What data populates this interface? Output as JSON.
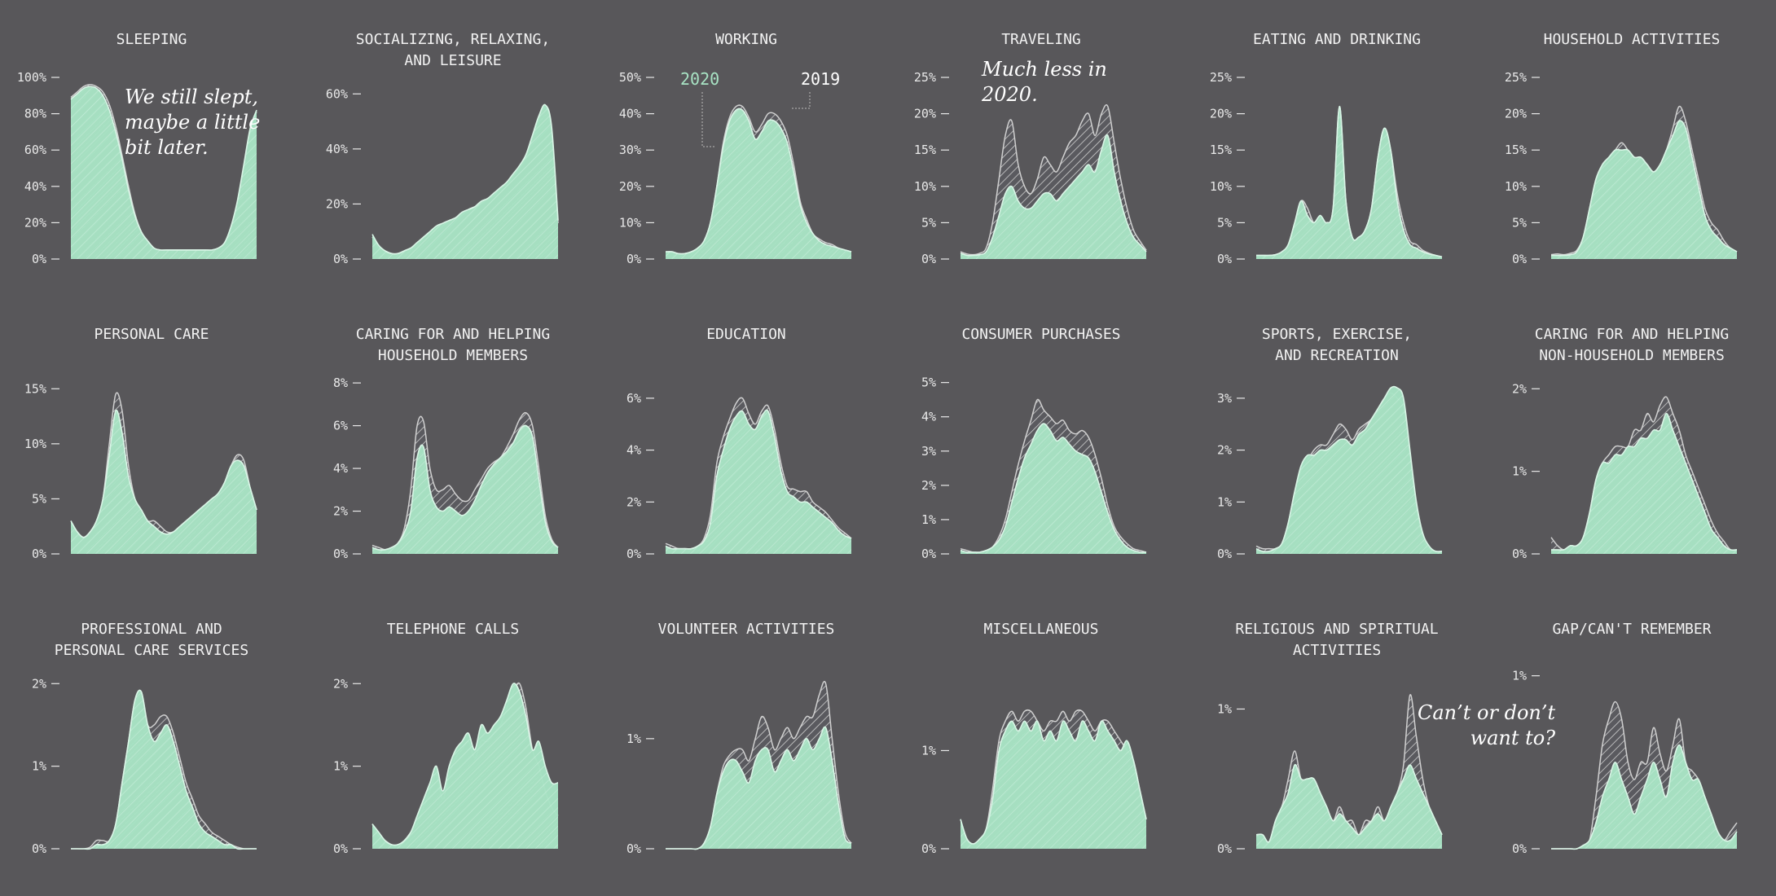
{
  "colors": {
    "background": "#58575a",
    "fill_2020": "#a8e3c4",
    "line_2020": "#d9f5e6",
    "fill_2019": "#5a5a5f",
    "line_2019": "#d0d0d0"
  },
  "legend": {
    "label_2020": "2020",
    "label_2019": "2019"
  },
  "annotations": {
    "sleeping": "We still slept,\nmaybe a little\nbit later.",
    "traveling": "Much less in\n2020.",
    "gap": "Can’t or don’t\nwant to?"
  },
  "chart_data": [
    {
      "type": "area",
      "title": "SLEEPING",
      "ymax": 100,
      "ticks": [
        "0%",
        "20%",
        "40%",
        "60%",
        "80%",
        "100%"
      ],
      "tick_values": [
        0,
        20,
        40,
        60,
        80,
        100
      ],
      "y2020": [
        88,
        91,
        94,
        95,
        94,
        90,
        82,
        70,
        55,
        38,
        24,
        15,
        10,
        6,
        5,
        5,
        5,
        5,
        5,
        5,
        5,
        5,
        5,
        6,
        9,
        18,
        32,
        52,
        72,
        82
      ],
      "y2019": [
        89,
        92,
        95,
        96,
        95,
        92,
        85,
        73,
        57,
        40,
        25,
        15,
        10,
        6,
        5,
        5,
        5,
        5,
        5,
        5,
        5,
        5,
        5,
        6,
        9,
        17,
        31,
        51,
        71,
        81
      ]
    },
    {
      "type": "area",
      "title": "SOCIALIZING, RELAXING,\nAND LEISURE",
      "ymax": 66,
      "ticks": [
        "0%",
        "20%",
        "40%",
        "60%"
      ],
      "tick_values": [
        0,
        20,
        40,
        60
      ],
      "y2020": [
        9,
        5,
        3,
        2,
        2,
        3,
        4,
        6,
        8,
        10,
        12,
        13,
        14,
        15,
        17,
        18,
        19,
        21,
        22,
        24,
        26,
        28,
        31,
        34,
        38,
        45,
        52,
        56,
        48,
        14
      ],
      "y2019": [
        8,
        4,
        3,
        2,
        2,
        3,
        4,
        5,
        8,
        9,
        11,
        13,
        14,
        15,
        16,
        18,
        19,
        20,
        22,
        23,
        26,
        27,
        30,
        33,
        37,
        44,
        51,
        55,
        47,
        13
      ]
    },
    {
      "type": "area",
      "title": "WORKING",
      "ymax": 50,
      "ticks": [
        "0%",
        "10%",
        "20%",
        "30%",
        "40%",
        "50%"
      ],
      "tick_values": [
        0,
        10,
        20,
        30,
        40,
        50
      ],
      "y2020": [
        2,
        2,
        1.5,
        1.5,
        2,
        3,
        5,
        10,
        20,
        31,
        38,
        41,
        41,
        38,
        33,
        35,
        38,
        38,
        36,
        32,
        24,
        15,
        10,
        7,
        5,
        4,
        3.5,
        3,
        2.5,
        2
      ],
      "y2019": [
        2,
        2,
        1.5,
        1.5,
        2,
        3,
        5,
        10,
        20,
        32,
        39,
        42,
        42,
        39,
        35,
        37,
        40,
        40,
        38,
        34,
        26,
        16,
        11,
        7,
        5.5,
        4.5,
        4,
        3,
        2.5,
        2
      ]
    },
    {
      "type": "area",
      "title": "TRAVELING",
      "ymax": 25,
      "ticks": [
        "0%",
        "5%",
        "10%",
        "15%",
        "20%",
        "25%"
      ],
      "tick_values": [
        0,
        5,
        10,
        15,
        20,
        25
      ],
      "y2020": [
        0.8,
        0.5,
        0.5,
        0.6,
        1,
        3,
        6,
        9,
        10,
        8,
        7,
        7,
        8,
        9,
        9,
        8,
        9,
        10,
        11,
        12,
        13,
        12,
        15,
        17,
        12,
        8,
        5,
        3,
        2,
        1
      ],
      "y2019": [
        1,
        0.7,
        0.6,
        0.8,
        1.5,
        5,
        11,
        17,
        19,
        13,
        10,
        9,
        11,
        14,
        13,
        12,
        14,
        16,
        17,
        19,
        20,
        17,
        20,
        21,
        16,
        11,
        7,
        4,
        2.5,
        1.2
      ]
    },
    {
      "type": "area",
      "title": "EATING AND DRINKING",
      "ymax": 25,
      "ticks": [
        "0%",
        "5%",
        "10%",
        "15%",
        "20%",
        "25%"
      ],
      "tick_values": [
        0,
        5,
        10,
        15,
        20,
        25
      ],
      "y2020": [
        0.5,
        0.5,
        0.5,
        0.6,
        1,
        2,
        5,
        8,
        6,
        5,
        6,
        5,
        7,
        21,
        8,
        3,
        3,
        4,
        7,
        14,
        18,
        15,
        8,
        4,
        2,
        1.5,
        1,
        0.7,
        0.5,
        0.3
      ],
      "y2019": [
        0.5,
        0.5,
        0.5,
        0.6,
        1,
        2,
        5,
        8,
        7,
        5,
        6,
        5,
        7,
        21,
        8,
        3,
        3,
        4,
        7,
        14,
        18,
        15,
        9,
        5,
        2.5,
        2,
        1.2,
        0.8,
        0.5,
        0.3
      ]
    },
    {
      "type": "area",
      "title": "HOUSEHOLD ACTIVITIES",
      "ymax": 25,
      "ticks": [
        "0%",
        "5%",
        "10%",
        "15%",
        "20%",
        "25%"
      ],
      "tick_values": [
        0,
        5,
        10,
        15,
        20,
        25
      ],
      "y2020": [
        0.5,
        0.5,
        0.5,
        0.6,
        1,
        3,
        7,
        11,
        13,
        14,
        15,
        15,
        15,
        14,
        14,
        13,
        12,
        13,
        15,
        17,
        19,
        18,
        14,
        10,
        6,
        4,
        3,
        2,
        1.5,
        1
      ],
      "y2019": [
        0.6,
        0.7,
        0.6,
        0.8,
        1.2,
        3,
        7,
        11,
        13,
        14,
        15,
        16,
        15,
        14,
        14,
        13,
        12,
        13,
        15,
        18,
        21,
        19,
        15,
        11,
        7,
        5,
        4,
        2.5,
        1.5,
        1
      ]
    },
    {
      "type": "area",
      "title": "PERSONAL CARE",
      "ymax": 16.5,
      "ticks": [
        "0%",
        "5%",
        "10%",
        "15%"
      ],
      "tick_values": [
        0,
        5,
        10,
        15
      ],
      "y2020": [
        3,
        2,
        1.5,
        2,
        3,
        5,
        9,
        13,
        11,
        7,
        5,
        4,
        3,
        2.5,
        2,
        1.8,
        2,
        2.5,
        3,
        3.5,
        4,
        4.5,
        5,
        5.5,
        6.5,
        8,
        8.5,
        8,
        6,
        4
      ],
      "y2019": [
        3,
        2,
        1.5,
        2,
        3,
        5,
        10,
        14.5,
        13,
        8,
        5,
        4,
        3,
        3,
        2.5,
        2,
        2,
        2.5,
        3,
        3.5,
        4,
        4.5,
        5,
        5.5,
        6.5,
        8,
        9,
        8.5,
        6,
        4
      ]
    },
    {
      "type": "area",
      "title": "CARING FOR AND HELPING\nHOUSEHOLD MEMBERS",
      "ymax": 8.5,
      "ticks": [
        "0%",
        "2%",
        "4%",
        "6%",
        "8%"
      ],
      "tick_values": [
        0,
        2,
        4,
        6,
        8
      ],
      "y2020": [
        0.3,
        0.2,
        0.2,
        0.3,
        0.5,
        1,
        2,
        4.5,
        5,
        3,
        2.2,
        2,
        2.2,
        2,
        1.8,
        2,
        2.5,
        3.2,
        3.8,
        4.2,
        4.5,
        4.8,
        5.2,
        5.8,
        6,
        5.5,
        3.5,
        1.5,
        0.6,
        0.3
      ],
      "y2019": [
        0.4,
        0.3,
        0.2,
        0.3,
        0.5,
        1.2,
        3,
        6,
        6.2,
        4,
        3,
        3,
        3.2,
        2.8,
        2.5,
        2.5,
        3,
        3.5,
        4,
        4.3,
        4.5,
        5,
        5.6,
        6.3,
        6.6,
        6,
        4,
        1.8,
        0.7,
        0.3
      ]
    },
    {
      "type": "area",
      "title": "EDUCATION",
      "ymax": 7,
      "ticks": [
        "0%",
        "2%",
        "4%",
        "6%"
      ],
      "tick_values": [
        0,
        2,
        4,
        6
      ],
      "y2020": [
        0.3,
        0.2,
        0.2,
        0.2,
        0.2,
        0.3,
        0.5,
        1.2,
        3,
        4,
        4.8,
        5.3,
        5.5,
        5,
        4.8,
        5.3,
        5.5,
        4.5,
        3.2,
        2.4,
        2.2,
        2,
        2,
        1.8,
        1.6,
        1.4,
        1.2,
        0.9,
        0.7,
        0.6
      ],
      "y2019": [
        0.4,
        0.3,
        0.2,
        0.2,
        0.2,
        0.3,
        0.6,
        1.5,
        3.5,
        4.5,
        5.2,
        5.8,
        6,
        5.4,
        5,
        5.5,
        5.7,
        4.8,
        3.5,
        2.6,
        2.5,
        2.4,
        2.4,
        2,
        1.8,
        1.6,
        1.3,
        1,
        0.8,
        0.6
      ]
    },
    {
      "type": "area",
      "title": "CONSUMER PURCHASES",
      "ymax": 5.3,
      "ticks": [
        "0%",
        "1%",
        "2%",
        "3%",
        "4%",
        "5%"
      ],
      "tick_values": [
        0,
        1,
        2,
        3,
        4,
        5
      ],
      "y2020": [
        0.1,
        0.05,
        0.05,
        0.05,
        0.1,
        0.2,
        0.4,
        0.8,
        1.5,
        2.2,
        2.8,
        3.2,
        3.6,
        3.8,
        3.6,
        3.3,
        3.4,
        3.2,
        3,
        2.9,
        2.8,
        2.4,
        1.8,
        1.2,
        0.7,
        0.4,
        0.2,
        0.1,
        0.05,
        0.05
      ],
      "y2019": [
        0.15,
        0.1,
        0.05,
        0.05,
        0.1,
        0.2,
        0.5,
        1,
        1.8,
        2.6,
        3.3,
        3.9,
        4.5,
        4.2,
        4,
        3.8,
        3.9,
        3.6,
        3.5,
        3.6,
        3.4,
        2.9,
        2.2,
        1.4,
        0.8,
        0.5,
        0.3,
        0.15,
        0.1,
        0.05
      ]
    },
    {
      "type": "area",
      "title": "SPORTS, EXERCISE,\nAND RECREATION",
      "ymax": 3.5,
      "ticks": [
        "0%",
        "1%",
        "2%",
        "3%"
      ],
      "tick_values": [
        0,
        1,
        2,
        3
      ],
      "y2020": [
        0.1,
        0.05,
        0.05,
        0.1,
        0.2,
        0.6,
        1.2,
        1.7,
        1.9,
        1.9,
        2,
        2,
        2.1,
        2.2,
        2.2,
        2.1,
        2.3,
        2.4,
        2.6,
        2.8,
        3,
        3.2,
        3.2,
        3,
        2,
        1,
        0.4,
        0.15,
        0.05,
        0.05
      ],
      "y2019": [
        0.15,
        0.1,
        0.1,
        0.1,
        0.2,
        0.6,
        1.2,
        1.6,
        1.8,
        2,
        2.1,
        2.1,
        2.3,
        2.5,
        2.4,
        2.2,
        2.4,
        2.5,
        2.6,
        2.8,
        3,
        3.1,
        3,
        2.8,
        1.9,
        0.9,
        0.3,
        0.1,
        0.05,
        0.05
      ]
    },
    {
      "type": "area",
      "title": "CARING FOR AND HELPING\nNON-HOUSEHOLD MEMBERS",
      "ymax": 2.2,
      "ticks": [
        "0%",
        "1%",
        "2%"
      ],
      "tick_values": [
        0,
        1,
        2
      ],
      "y2020": [
        0.05,
        0.05,
        0.05,
        0.1,
        0.1,
        0.2,
        0.5,
        0.9,
        1.1,
        1.1,
        1.2,
        1.2,
        1.3,
        1.3,
        1.4,
        1.4,
        1.5,
        1.5,
        1.7,
        1.5,
        1.3,
        1.1,
        0.9,
        0.7,
        0.5,
        0.3,
        0.2,
        0.1,
        0.05,
        0.05
      ],
      "y2019": [
        0.2,
        0.1,
        0.05,
        0.1,
        0.1,
        0.2,
        0.5,
        0.9,
        1.1,
        1.2,
        1.3,
        1.3,
        1.3,
        1.5,
        1.5,
        1.7,
        1.6,
        1.8,
        1.9,
        1.7,
        1.5,
        1.2,
        1,
        0.8,
        0.6,
        0.4,
        0.25,
        0.15,
        0.05,
        0.05
      ]
    },
    {
      "type": "area",
      "title": "PROFESSIONAL AND\nPERSONAL CARE SERVICES",
      "ymax": 2.2,
      "ticks": [
        "0%",
        "1%",
        "2%"
      ],
      "tick_values": [
        0,
        1,
        2
      ],
      "y2020": [
        0,
        0,
        0,
        0,
        0.05,
        0.05,
        0.1,
        0.3,
        0.8,
        1.3,
        1.8,
        1.9,
        1.5,
        1.3,
        1.4,
        1.5,
        1.3,
        1,
        0.7,
        0.5,
        0.3,
        0.2,
        0.15,
        0.1,
        0.05,
        0.05,
        0,
        0,
        0,
        0
      ],
      "y2019": [
        0,
        0,
        0,
        0.02,
        0.1,
        0.1,
        0.1,
        0.3,
        0.8,
        1.3,
        1.8,
        1.9,
        1.5,
        1.5,
        1.6,
        1.6,
        1.4,
        1.1,
        0.8,
        0.6,
        0.4,
        0.3,
        0.2,
        0.15,
        0.1,
        0.05,
        0.02,
        0,
        0,
        0
      ]
    },
    {
      "type": "area",
      "title": "TELEPHONE CALLS",
      "ymax": 2.2,
      "ticks": [
        "0%",
        "1%",
        "2%"
      ],
      "tick_values": [
        0,
        1,
        2
      ],
      "y2020": [
        0.3,
        0.2,
        0.1,
        0.05,
        0.05,
        0.1,
        0.2,
        0.4,
        0.6,
        0.8,
        1,
        0.7,
        1,
        1.2,
        1.3,
        1.4,
        1.2,
        1.5,
        1.4,
        1.5,
        1.6,
        1.8,
        2,
        1.9,
        1.6,
        1.2,
        1.3,
        1,
        0.8,
        0.8
      ],
      "y2019": [
        0.3,
        0.15,
        0.1,
        0.05,
        0.05,
        0.1,
        0.2,
        0.3,
        0.5,
        0.7,
        0.9,
        0.6,
        0.9,
        1.1,
        1.2,
        1.3,
        1.1,
        1.3,
        1.3,
        1.4,
        1.5,
        1.7,
        1.9,
        2,
        1.7,
        1.2,
        1,
        0.7,
        0.5,
        0.4
      ]
    },
    {
      "type": "area",
      "title": "VOLUNTEER ACTIVITIES",
      "ymax": 1.65,
      "ticks": [
        "0%",
        "1%"
      ],
      "tick_values": [
        0,
        1
      ],
      "y2020": [
        0,
        0,
        0,
        0,
        0,
        0,
        0.05,
        0.2,
        0.5,
        0.7,
        0.8,
        0.8,
        0.7,
        0.6,
        0.8,
        0.9,
        0.9,
        0.7,
        0.8,
        0.9,
        0.8,
        0.9,
        1,
        0.9,
        1,
        1.1,
        0.8,
        0.4,
        0.1,
        0.05
      ],
      "y2019": [
        0,
        0,
        0,
        0,
        0,
        0,
        0.05,
        0.2,
        0.5,
        0.75,
        0.85,
        0.9,
        0.9,
        0.8,
        1,
        1.2,
        1.1,
        0.9,
        1,
        1.1,
        1,
        1.1,
        1.2,
        1.2,
        1.4,
        1.5,
        1,
        0.5,
        0.15,
        0.05
      ]
    },
    {
      "type": "area",
      "title": "MISCELLANEOUS",
      "ymax": 1.85,
      "ticks": [
        "0%",
        "1%"
      ],
      "tick_values": [
        0,
        1
      ],
      "y2020": [
        0.3,
        0.1,
        0.05,
        0.1,
        0.2,
        0.5,
        1,
        1.2,
        1.3,
        1.2,
        1.3,
        1.2,
        1.3,
        1.1,
        1.2,
        1.1,
        1.3,
        1.2,
        1.1,
        1.3,
        1.2,
        1.1,
        1.3,
        1.2,
        1.1,
        1,
        1.1,
        0.9,
        0.6,
        0.3
      ],
      "y2019": [
        0.3,
        0.1,
        0.05,
        0.1,
        0.2,
        0.6,
        1.1,
        1.3,
        1.4,
        1.3,
        1.4,
        1.4,
        1.3,
        1.2,
        1.3,
        1.3,
        1.4,
        1.3,
        1.4,
        1.4,
        1.3,
        1.2,
        1.3,
        1.3,
        1.2,
        1.1,
        1,
        0.9,
        0.6,
        0.3
      ]
    },
    {
      "type": "area",
      "title": "RELIGIOUS AND SPIRITUAL\nACTIVITIES",
      "ymax": 1.3,
      "ticks": [
        "0%",
        "1%"
      ],
      "tick_values": [
        0,
        1
      ],
      "y2020": [
        0.1,
        0.1,
        0.05,
        0.2,
        0.3,
        0.4,
        0.6,
        0.5,
        0.5,
        0.5,
        0.4,
        0.3,
        0.2,
        0.25,
        0.2,
        0.15,
        0.1,
        0.15,
        0.2,
        0.25,
        0.2,
        0.3,
        0.4,
        0.5,
        0.6,
        0.5,
        0.4,
        0.3,
        0.2,
        0.1
      ],
      "y2019": [
        0.1,
        0.1,
        0.05,
        0.2,
        0.3,
        0.5,
        0.7,
        0.5,
        0.5,
        0.5,
        0.4,
        0.3,
        0.2,
        0.3,
        0.2,
        0.2,
        0.1,
        0.2,
        0.2,
        0.3,
        0.2,
        0.3,
        0.4,
        0.6,
        1.1,
        0.8,
        0.5,
        0.3,
        0.2,
        0.1
      ]
    },
    {
      "type": "area",
      "title": "GAP/CAN'T REMEMBER",
      "ymax": 1.05,
      "ticks": [
        "0%",
        "1%"
      ],
      "tick_values": [
        0,
        1
      ],
      "y2020": [
        0,
        0,
        0,
        0,
        0,
        0.02,
        0.05,
        0.15,
        0.3,
        0.4,
        0.5,
        0.4,
        0.3,
        0.2,
        0.3,
        0.4,
        0.5,
        0.4,
        0.3,
        0.5,
        0.6,
        0.5,
        0.4,
        0.4,
        0.3,
        0.2,
        0.1,
        0.05,
        0.05,
        0.1
      ],
      "y2019": [
        0,
        0,
        0,
        0,
        0,
        0.02,
        0.05,
        0.3,
        0.6,
        0.75,
        0.85,
        0.75,
        0.5,
        0.4,
        0.5,
        0.5,
        0.7,
        0.55,
        0.45,
        0.6,
        0.75,
        0.5,
        0.45,
        0.4,
        0.3,
        0.2,
        0.1,
        0.05,
        0.1,
        0.15
      ]
    }
  ]
}
